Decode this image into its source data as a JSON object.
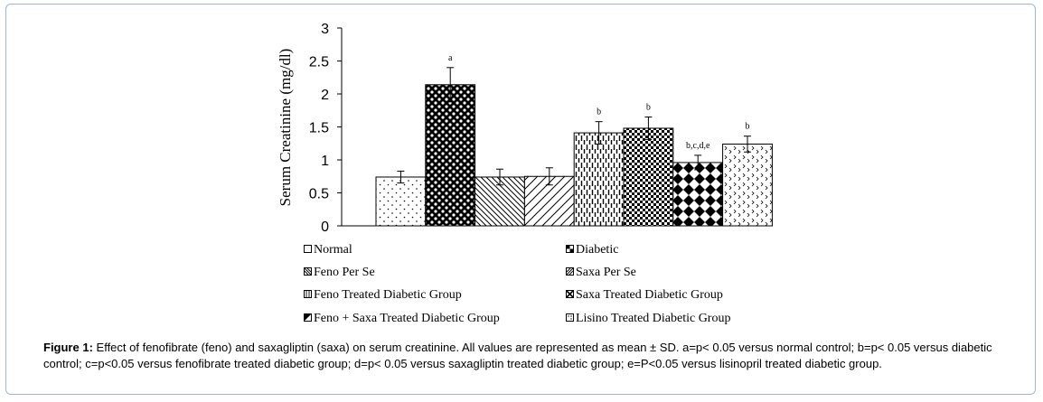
{
  "chart_data": {
    "type": "bar",
    "ylabel": "Serum Creatinine (mg/dl)",
    "ylim": [
      0,
      3
    ],
    "yticks": [
      "0",
      "0.5",
      "1",
      "1.5",
      "2",
      "2.5",
      "3"
    ],
    "grid": false,
    "legend_position": "bottom",
    "bars": [
      {
        "name": "Normal",
        "value": 0.74,
        "error": 0.09,
        "label": "",
        "pattern": "dots"
      },
      {
        "name": "Diabetic",
        "value": 2.14,
        "error": 0.26,
        "label": "a",
        "pattern": "checker-dark"
      },
      {
        "name": "Feno Per Se",
        "value": 0.74,
        "error": 0.12,
        "label": "",
        "pattern": "diag-back"
      },
      {
        "name": "Saxa Per Se",
        "value": 0.75,
        "error": 0.13,
        "label": "",
        "pattern": "diag-fwd"
      },
      {
        "name": "Feno Treated Diabetic Group",
        "value": 1.41,
        "error": 0.17,
        "label": "b",
        "pattern": "vertical-dashes"
      },
      {
        "name": "Saxa Treated Diabetic Group",
        "value": 1.48,
        "error": 0.17,
        "label": "b",
        "pattern": "checker"
      },
      {
        "name": "Feno + Saxa Treated Diabetic Group",
        "value": 0.96,
        "error": 0.11,
        "label": "b,c,d,e",
        "pattern": "diamonds"
      },
      {
        "name": "Lisino Treated Diabetic Group",
        "value": 1.24,
        "error": 0.12,
        "label": "b",
        "pattern": "chevrons"
      }
    ]
  },
  "legend": [
    {
      "label": "Normal",
      "icon": "open-square-icon"
    },
    {
      "label": "Diabetic",
      "icon": "checker-square-icon"
    },
    {
      "label": "Feno Per Se",
      "icon": "hatch-back-square-icon"
    },
    {
      "label": "Saxa Per Se",
      "icon": "hatch-fwd-square-icon"
    },
    {
      "label": "Feno Treated Diabetic Group",
      "icon": "vertical-lines-square-icon"
    },
    {
      "label": "Saxa Treated Diabetic Group",
      "icon": "cross-square-icon"
    },
    {
      "label": "Feno + Saxa Treated Diabetic Group",
      "icon": "half-filled-square-icon"
    },
    {
      "label": "Lisino Treated Diabetic Group",
      "icon": "dotted-square-icon"
    }
  ],
  "caption": {
    "label": "Figure 1:",
    "text": " Effect of fenofibrate (feno) and saxagliptin (saxa) on serum creatinine. All values are represented as mean ± SD. a=p< 0.05 versus normal control; b=p< 0.05 versus diabetic control; c=p<0.05 versus fenofibrate treated diabetic group; d=p< 0.05 versus saxagliptin treated diabetic group; e=P<0.05 versus lisinopril treated diabetic group."
  }
}
